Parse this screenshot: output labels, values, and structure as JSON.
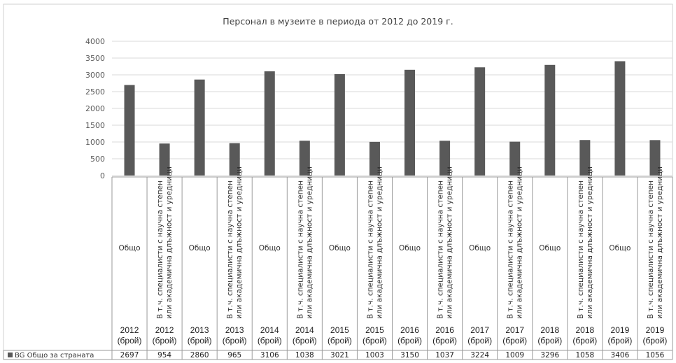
{
  "chart_data": {
    "type": "bar",
    "title": "Персонал в музеите в периода от 2012 до 2019 г.",
    "ylim": [
      0,
      4000
    ],
    "yticks": [
      0,
      500,
      1000,
      1500,
      2000,
      2500,
      3000,
      3500,
      4000
    ],
    "grid": true,
    "legend_position": "data-table",
    "group_labels": [
      "Общо",
      "В т.ч. специалисти с научна степен или академична длъжност и уредници"
    ],
    "group_label_lines": [
      "В т.ч. специалисти с научна степен",
      "или академична длъжност и уредници"
    ],
    "years": [
      "2012",
      "2013",
      "2014",
      "2015",
      "2016",
      "2017",
      "2018",
      "2019"
    ],
    "unit": "(брой)",
    "categories": [
      "Общо 2012 (брой)",
      "В т.ч. специалисти с научна степен или академична длъжност и уредници 2012 (брой)",
      "Общо 2013 (брой)",
      "В т.ч. специалисти с научна степен или академична длъжност и уредници 2013 (брой)",
      "Общо 2014 (брой)",
      "В т.ч. специалисти с научна степен или академична длъжност и уредници 2014 (брой)",
      "Общо 2015 (брой)",
      "В т.ч. специалисти с научна степен или академична длъжност и уредници 2015 (брой)",
      "Общо 2016 (брой)",
      "В т.ч. специалисти с научна степен или академична длъжност и уредници 2016 (брой)",
      "Общо 2017 (брой)",
      "В т.ч. специалисти с научна степен или академична длъжност и уредници 2017 (брой)",
      "Общо 2018 (брой)",
      "В т.ч. специалисти с научна степен или академична длъжност и уредници 2018 (брой)",
      "Общо 2019 (брой)",
      "В т.ч. специалисти с научна степен или академична длъжност и уредници 2019 (брой)"
    ],
    "series": [
      {
        "name": "BG Общо за страната",
        "color": "#595959",
        "values": [
          2697,
          954,
          2860,
          965,
          3106,
          1038,
          3021,
          1003,
          3150,
          1037,
          3224,
          1009,
          3296,
          1058,
          3406,
          1056
        ]
      }
    ]
  }
}
